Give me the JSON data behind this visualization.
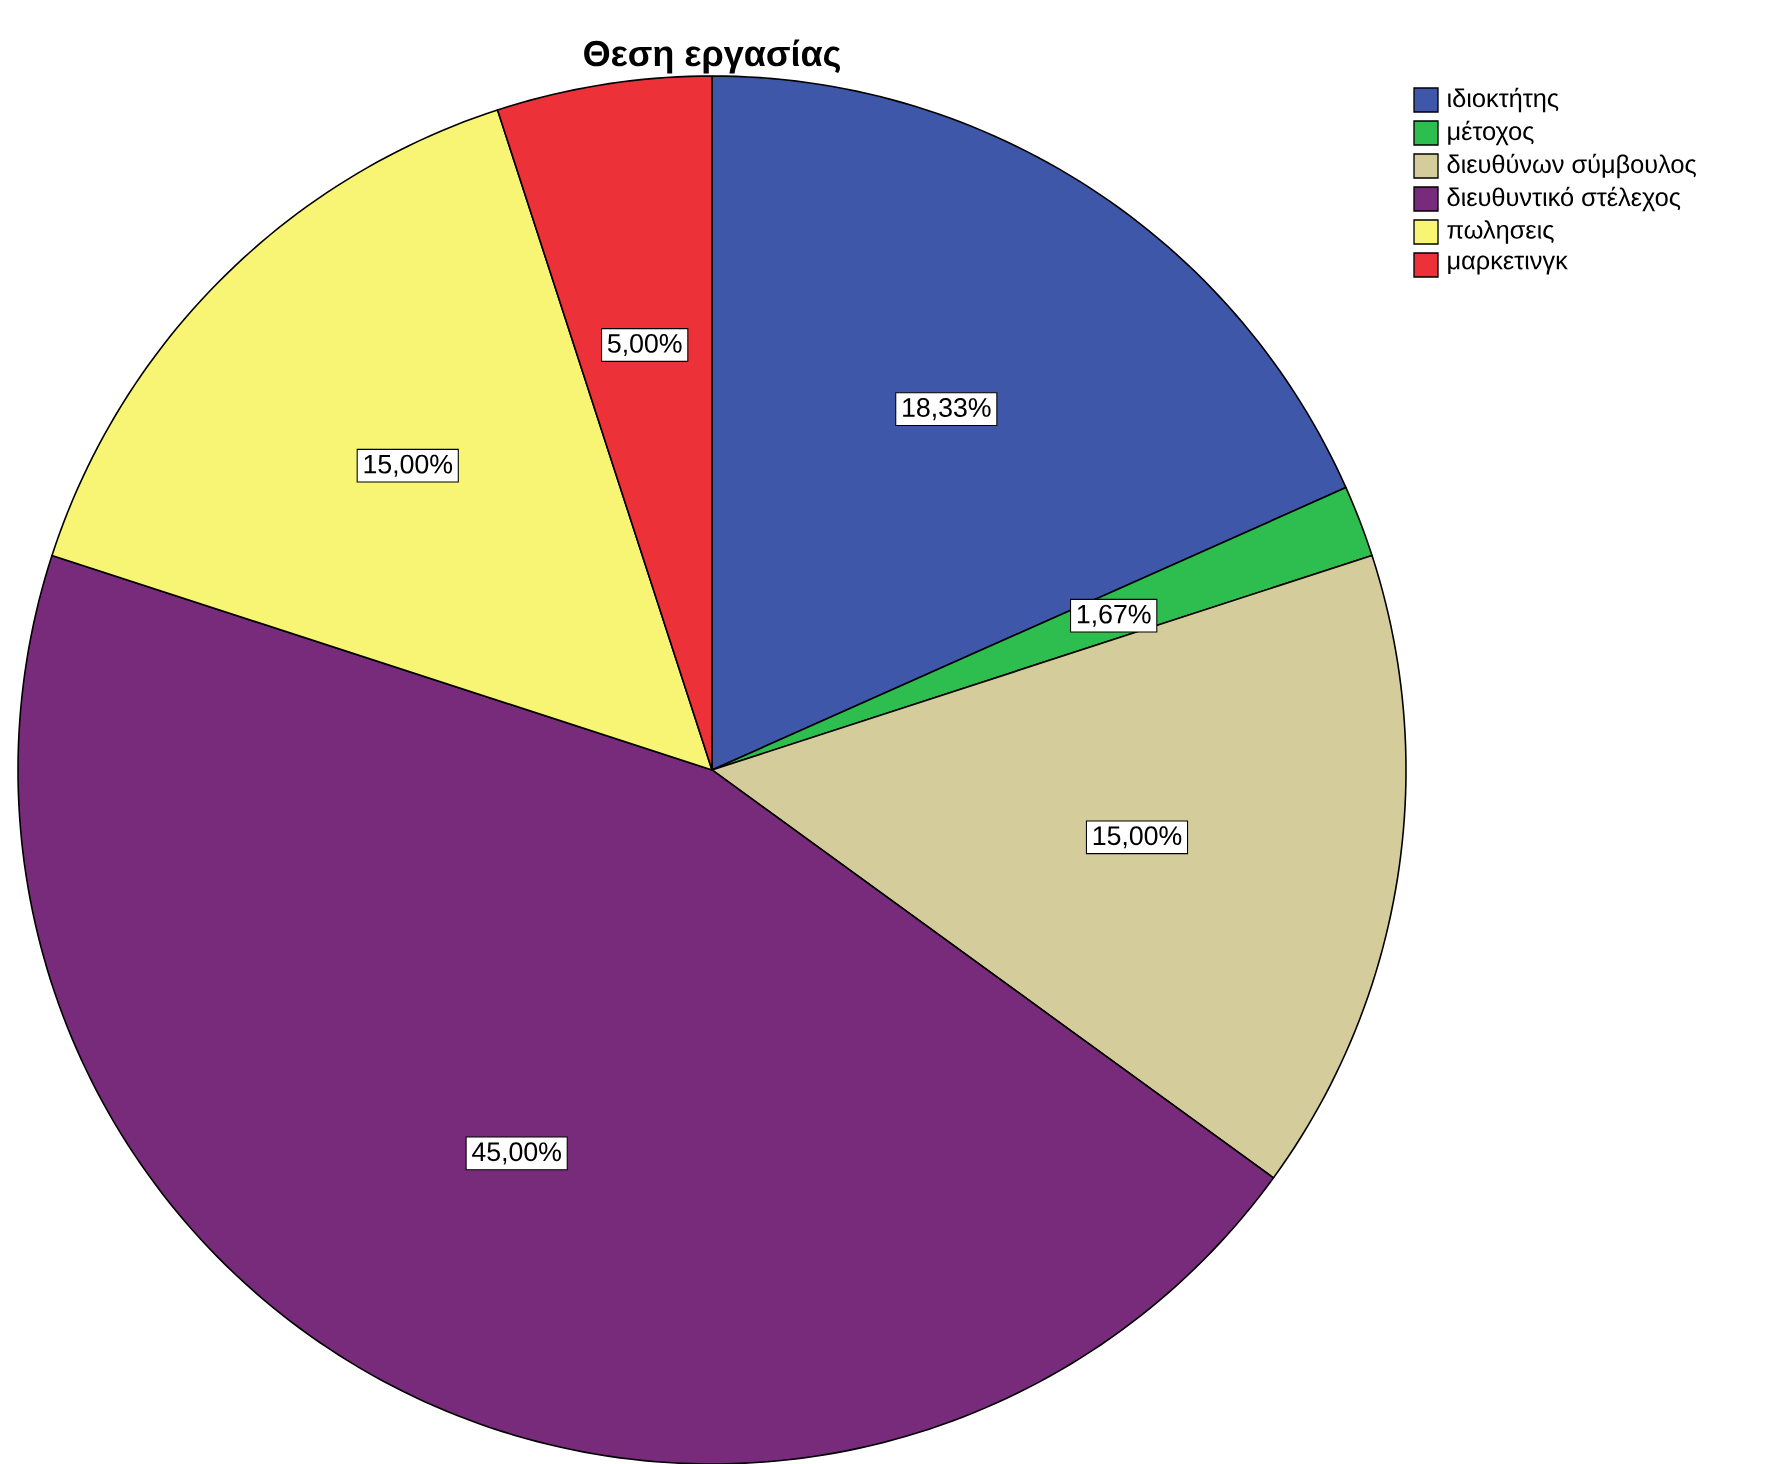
{
  "chart_data": {
    "type": "pie",
    "title": "Θεση εργασίας",
    "categories": [
      "ιδιοκτήτης",
      "μέτοχος",
      "διευθύνων σύμβουλος",
      "διευθυντικό στέλεχος",
      "πωλησεις",
      "μαρκετινγκ"
    ],
    "values": [
      18.33,
      1.67,
      15,
      45,
      15,
      5
    ],
    "value_labels": [
      "18,33%",
      "1,67%",
      "15,00%",
      "45,00%",
      "15,00%",
      "5,00%"
    ],
    "colors": [
      "#3f57a8",
      "#2ebd4f",
      "#d4cd9b",
      "#782b7a",
      "#f8f574",
      "#ec3238"
    ],
    "legend": "top right"
  }
}
